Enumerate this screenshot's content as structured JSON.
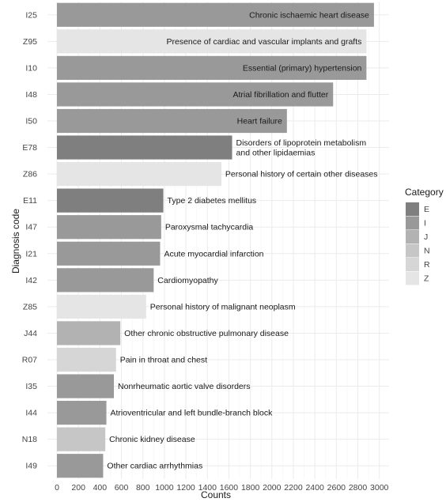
{
  "chart_data": {
    "type": "bar",
    "orientation": "horizontal",
    "xlabel": "Counts",
    "ylabel": "Diagnosis code",
    "xlim": [
      0,
      3100
    ],
    "xticks": [
      0,
      200,
      400,
      600,
      800,
      1000,
      1200,
      1400,
      1600,
      1800,
      2000,
      2200,
      2400,
      2600,
      2800,
      3000
    ],
    "grid": true,
    "legend": {
      "title": "Category",
      "placement": "right",
      "entries": [
        {
          "label": "E",
          "color": "#7f7f7f"
        },
        {
          "label": "I",
          "color": "#999999"
        },
        {
          "label": "J",
          "color": "#b2b2b2"
        },
        {
          "label": "N",
          "color": "#c6c6c6"
        },
        {
          "label": "R",
          "color": "#d6d6d6"
        },
        {
          "label": "Z",
          "color": "#e5e5e5"
        }
      ]
    },
    "bars": [
      {
        "code": "I25",
        "label": "Chronic ischaemic heart disease",
        "value": 2950,
        "category": "I"
      },
      {
        "code": "Z95",
        "label": "Presence of cardiac and vascular implants and grafts",
        "value": 2880,
        "category": "Z"
      },
      {
        "code": "I10",
        "label": "Essential (primary) hypertension",
        "value": 2880,
        "category": "I"
      },
      {
        "code": "I48",
        "label": "Atrial fibrillation and flutter",
        "value": 2570,
        "category": "I"
      },
      {
        "code": "I50",
        "label": "Heart failure",
        "value": 2140,
        "category": "I"
      },
      {
        "code": "E78",
        "label": [
          "Disorders of lipoprotein metabolism",
          "and other lipidaemias"
        ],
        "value": 1630,
        "category": "E"
      },
      {
        "code": "Z86",
        "label": "Personal history of certain other diseases",
        "value": 1530,
        "category": "Z"
      },
      {
        "code": "E11",
        "label": "Type 2 diabetes mellitus",
        "value": 990,
        "category": "E"
      },
      {
        "code": "I47",
        "label": "Paroxysmal tachycardia",
        "value": 970,
        "category": "I"
      },
      {
        "code": "I21",
        "label": "Acute myocardial infarction",
        "value": 960,
        "category": "I"
      },
      {
        "code": "I42",
        "label": "Cardiomyopathy",
        "value": 900,
        "category": "I"
      },
      {
        "code": "Z85",
        "label": "Personal history of malignant neoplasm",
        "value": 830,
        "category": "Z"
      },
      {
        "code": "J44",
        "label": "Other chronic obstructive pulmonary disease",
        "value": 590,
        "category": "J"
      },
      {
        "code": "R07",
        "label": "Pain in throat and chest",
        "value": 550,
        "category": "R"
      },
      {
        "code": "I35",
        "label": "Nonrheumatic aortic valve disorders",
        "value": 530,
        "category": "I"
      },
      {
        "code": "I44",
        "label": "Atrioventricular and left bundle-branch block",
        "value": 460,
        "category": "I"
      },
      {
        "code": "N18",
        "label": "Chronic kidney disease",
        "value": 450,
        "category": "N"
      },
      {
        "code": "I49",
        "label": "Other cardiac arrhythmias",
        "value": 430,
        "category": "I"
      }
    ]
  }
}
